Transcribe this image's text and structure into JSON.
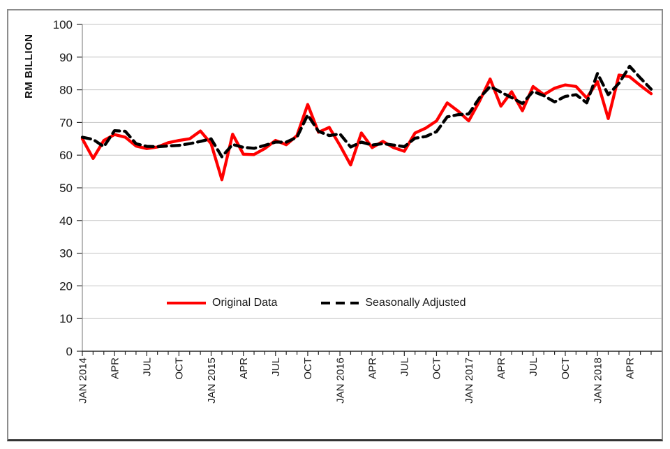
{
  "chart_data": {
    "type": "line",
    "title": "",
    "xlabel": "",
    "ylabel": "RM BILLION",
    "ylim": [
      0,
      100
    ],
    "ytick_step": 10,
    "grid": "horizontal",
    "legend_position": "bottom-center-inside",
    "colors": {
      "original": "#FF0000",
      "seasonally_adjusted": "#000000",
      "gridline": "#c3c3c3",
      "axis": "#262626"
    },
    "months": [
      "JAN 2014",
      "FEB 2014",
      "MAR 2014",
      "APR 2014",
      "MAY 2014",
      "JUN 2014",
      "JUL 2014",
      "AUG 2014",
      "SEP 2014",
      "OCT 2014",
      "NOV 2014",
      "DEC 2014",
      "JAN 2015",
      "FEB 2015",
      "MAR 2015",
      "APR 2015",
      "MAY 2015",
      "JUN 2015",
      "JUL 2015",
      "AUG 2015",
      "SEP 2015",
      "OCT 2015",
      "NOV 2015",
      "DEC 2015",
      "JAN 2016",
      "FEB 2016",
      "MAR 2016",
      "APR 2016",
      "MAY 2016",
      "JUN 2016",
      "JUL 2016",
      "AUG 2016",
      "SEP 2016",
      "OCT 2016",
      "NOV 2016",
      "DEC 2016",
      "JAN 2017",
      "FEB 2017",
      "MAR 2017",
      "APR 2017",
      "MAY 2017",
      "JUN 2017",
      "JUL 2017",
      "AUG 2017",
      "SEP 2017",
      "OCT 2017",
      "NOV 2017",
      "DEC 2017",
      "JAN 2018",
      "FEB 2018",
      "MAR 2018",
      "APR 2018",
      "MAY 2018",
      "JUN 2018"
    ],
    "xtick_labels": [
      {
        "index": 0,
        "label": "JAN 2014"
      },
      {
        "index": 3,
        "label": "APR"
      },
      {
        "index": 6,
        "label": "JUL"
      },
      {
        "index": 9,
        "label": "OCT"
      },
      {
        "index": 12,
        "label": "JAN 2015"
      },
      {
        "index": 15,
        "label": "APR"
      },
      {
        "index": 18,
        "label": "JUL"
      },
      {
        "index": 21,
        "label": "OCT"
      },
      {
        "index": 24,
        "label": "JAN 2016"
      },
      {
        "index": 27,
        "label": "APR"
      },
      {
        "index": 30,
        "label": "JUL"
      },
      {
        "index": 33,
        "label": "OCT"
      },
      {
        "index": 36,
        "label": "JAN 2017"
      },
      {
        "index": 39,
        "label": "APR"
      },
      {
        "index": 42,
        "label": "JUL"
      },
      {
        "index": 45,
        "label": "OCT"
      },
      {
        "index": 48,
        "label": "JAN 2018"
      },
      {
        "index": 51,
        "label": "APR"
      }
    ],
    "series": [
      {
        "name": "Original Data",
        "color": "#FF0000",
        "style": "solid",
        "values": [
          65.0,
          59.0,
          64.5,
          66.3,
          65.5,
          62.8,
          62.0,
          62.5,
          63.8,
          64.5,
          65.0,
          67.4,
          63.5,
          52.5,
          66.4,
          60.3,
          60.2,
          62.0,
          64.5,
          63.2,
          66.0,
          75.5,
          67.0,
          68.5,
          63.0,
          57.0,
          66.8,
          62.3,
          64.2,
          62.3,
          61.2,
          66.8,
          68.3,
          70.5,
          76.0,
          73.5,
          70.5,
          76.5,
          83.3,
          75.0,
          79.4,
          73.6,
          81.0,
          78.5,
          80.5,
          81.5,
          81.0,
          77.5,
          82.5,
          71.2,
          84.5,
          84.0,
          81.3,
          78.8
        ]
      },
      {
        "name": "Seasonally Adjusted",
        "color": "#000000",
        "style": "dashed",
        "values": [
          65.5,
          64.8,
          62.6,
          67.5,
          67.3,
          63.5,
          62.7,
          62.6,
          62.8,
          63.0,
          63.5,
          64.2,
          65.0,
          59.5,
          63.3,
          62.4,
          62.1,
          63.0,
          64.0,
          64.0,
          65.5,
          72.3,
          67.3,
          66.0,
          66.5,
          62.5,
          64.0,
          63.1,
          63.5,
          63.1,
          62.6,
          65.2,
          65.7,
          67.2,
          71.7,
          72.4,
          72.6,
          77.5,
          81.0,
          79.3,
          77.6,
          75.8,
          79.5,
          78.2,
          76.3,
          78.0,
          78.5,
          76.0,
          85.0,
          78.5,
          82.0,
          87.2,
          83.6,
          80.2
        ]
      }
    ]
  }
}
